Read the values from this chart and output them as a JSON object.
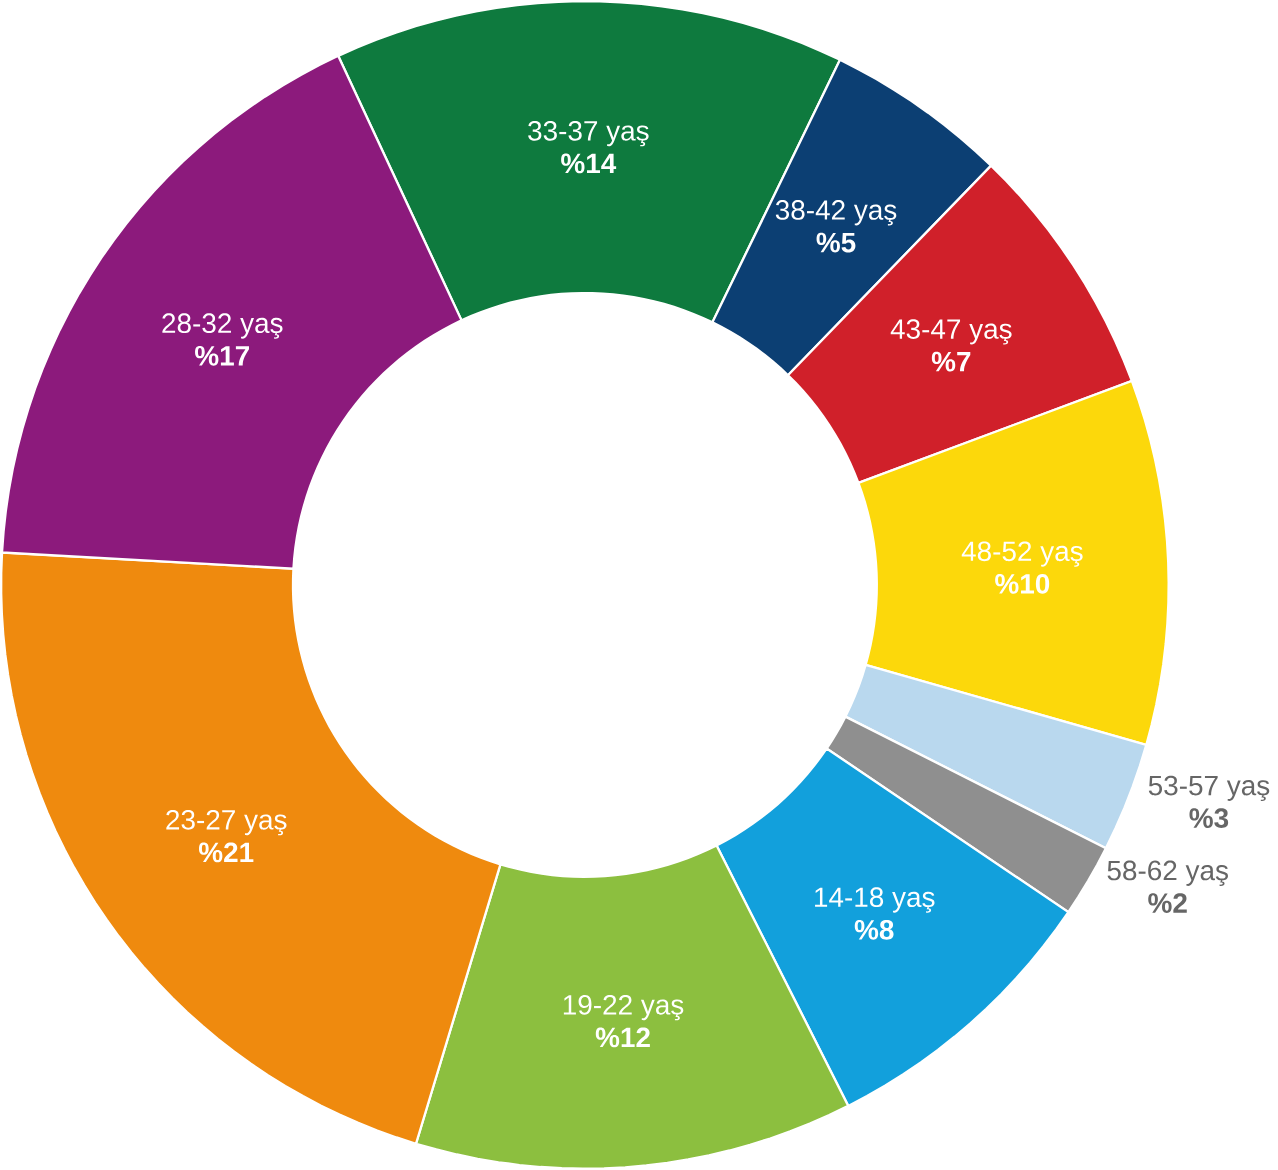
{
  "chart_data": {
    "type": "donut",
    "categories": [
      "33-37 yaş",
      "38-42 yaş",
      "43-47 yaş",
      "48-52 yaş",
      "53-57 yaş",
      "58-62 yaş",
      "14-18 yaş",
      "19-22 yaş",
      "23-27 yaş",
      "28-32 yaş"
    ],
    "values": [
      14,
      5,
      7,
      10,
      3,
      2,
      8,
      12,
      21,
      17
    ],
    "colors": [
      "#0e7a3e",
      "#0c3f73",
      "#d0202a",
      "#fcd80b",
      "#b9d8ee",
      "#8f8f8f",
      "#12a0dc",
      "#8cbf3f",
      "#ef8a0e",
      "#8c1a7c"
    ],
    "value_labels": [
      "%14",
      "%5",
      "%7",
      "%10",
      "%3",
      "%2",
      "%8",
      "%12",
      "%21",
      "%17"
    ]
  }
}
